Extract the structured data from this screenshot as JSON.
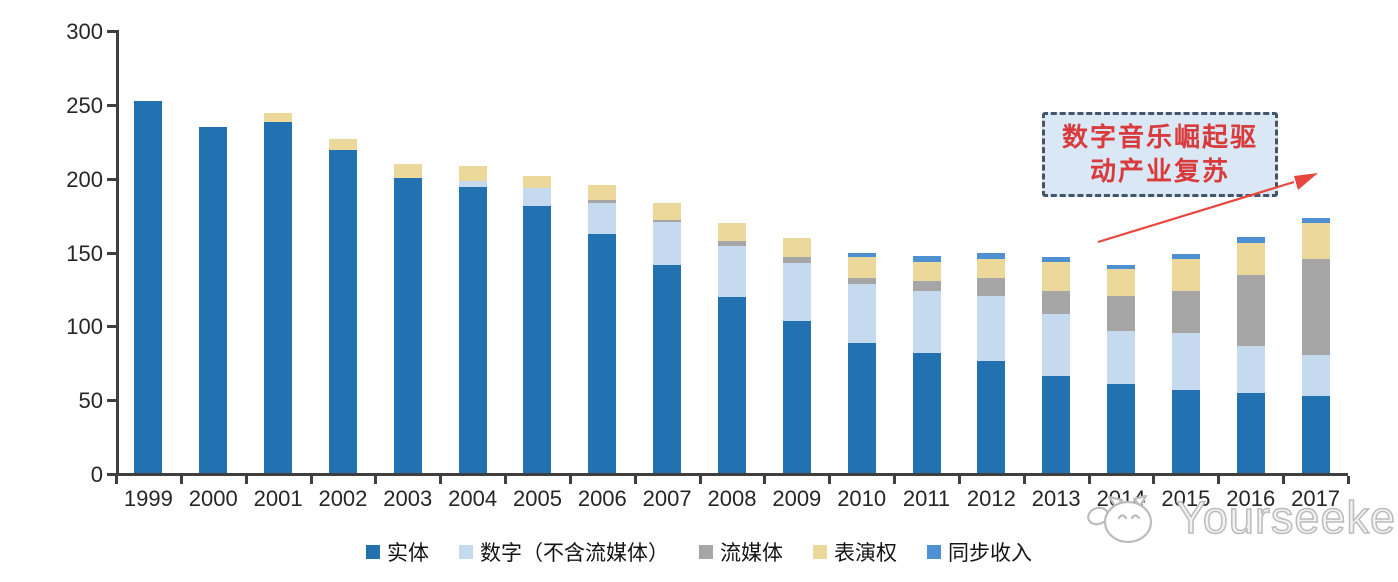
{
  "chart_data": {
    "type": "bar",
    "stacked": true,
    "title": "",
    "xlabel": "",
    "ylabel": "",
    "ylim": [
      0,
      300
    ],
    "yticks": [
      0,
      50,
      100,
      150,
      200,
      250,
      300
    ],
    "grid": false,
    "legend_position": "bottom",
    "categories": [
      "1999",
      "2000",
      "2001",
      "2002",
      "2003",
      "2004",
      "2005",
      "2006",
      "2007",
      "2008",
      "2009",
      "2010",
      "2011",
      "2012",
      "2013",
      "2014",
      "2015",
      "2016",
      "2017"
    ],
    "series": [
      {
        "name": "实体",
        "color": "#2272B2",
        "values": [
          252,
          234,
          238,
          219,
          200,
          194,
          181,
          162,
          141,
          119,
          103,
          88,
          81,
          76,
          66,
          60,
          56,
          54,
          52
        ]
      },
      {
        "name": "数字（不含流媒体）",
        "color": "#C5DAEE",
        "values": [
          0,
          0,
          0,
          0,
          0,
          4,
          12,
          21,
          29,
          35,
          39,
          40,
          42,
          44,
          42,
          36,
          39,
          32,
          28
        ]
      },
      {
        "name": "流媒体",
        "color": "#A6A6A6",
        "values": [
          0,
          0,
          0,
          0,
          0,
          0,
          0,
          2,
          1,
          3,
          4,
          4,
          7,
          12,
          15,
          24,
          28,
          48,
          65
        ]
      },
      {
        "name": "表演权",
        "color": "#EDD89B",
        "values": [
          0,
          0,
          6,
          7,
          9,
          10,
          8,
          10,
          12,
          12,
          13,
          14,
          13,
          13,
          20,
          18,
          22,
          22,
          24
        ]
      },
      {
        "name": "同步收入",
        "color": "#4E90D1",
        "values": [
          0,
          0,
          0,
          0,
          0,
          0,
          0,
          0,
          0,
          0,
          0,
          3,
          4,
          4,
          3,
          3,
          3,
          4,
          4
        ]
      }
    ]
  },
  "annotation": {
    "line1": "数字音乐崛起驱",
    "line2": "动产业复苏",
    "text_color": "#D93A3C",
    "box_fill": "#DAE7F5",
    "box_border": "#44546A",
    "arrow_color": "#E8473F"
  },
  "watermark": {
    "text": "Yourseeker",
    "icon": "cat-face-logo",
    "color": "#BCBCBC"
  },
  "axis": {
    "line_color": "#3F3F3F",
    "label_color": "#262626"
  }
}
